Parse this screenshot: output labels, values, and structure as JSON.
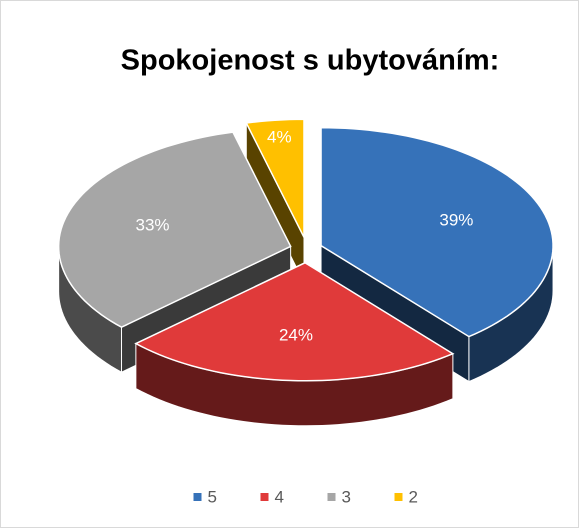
{
  "chart_data": {
    "type": "pie3d",
    "title": "Spokojenost s ubytováním:",
    "categories": [
      "5",
      "4",
      "3",
      "2"
    ],
    "values": [
      39,
      24,
      33,
      4
    ],
    "value_labels": [
      "39%",
      "24%",
      "33%",
      "4%"
    ],
    "colors": [
      "#3672b9",
      "#e03a3a",
      "#a6a6a6",
      "#ffc000"
    ],
    "legend": "bottom"
  }
}
